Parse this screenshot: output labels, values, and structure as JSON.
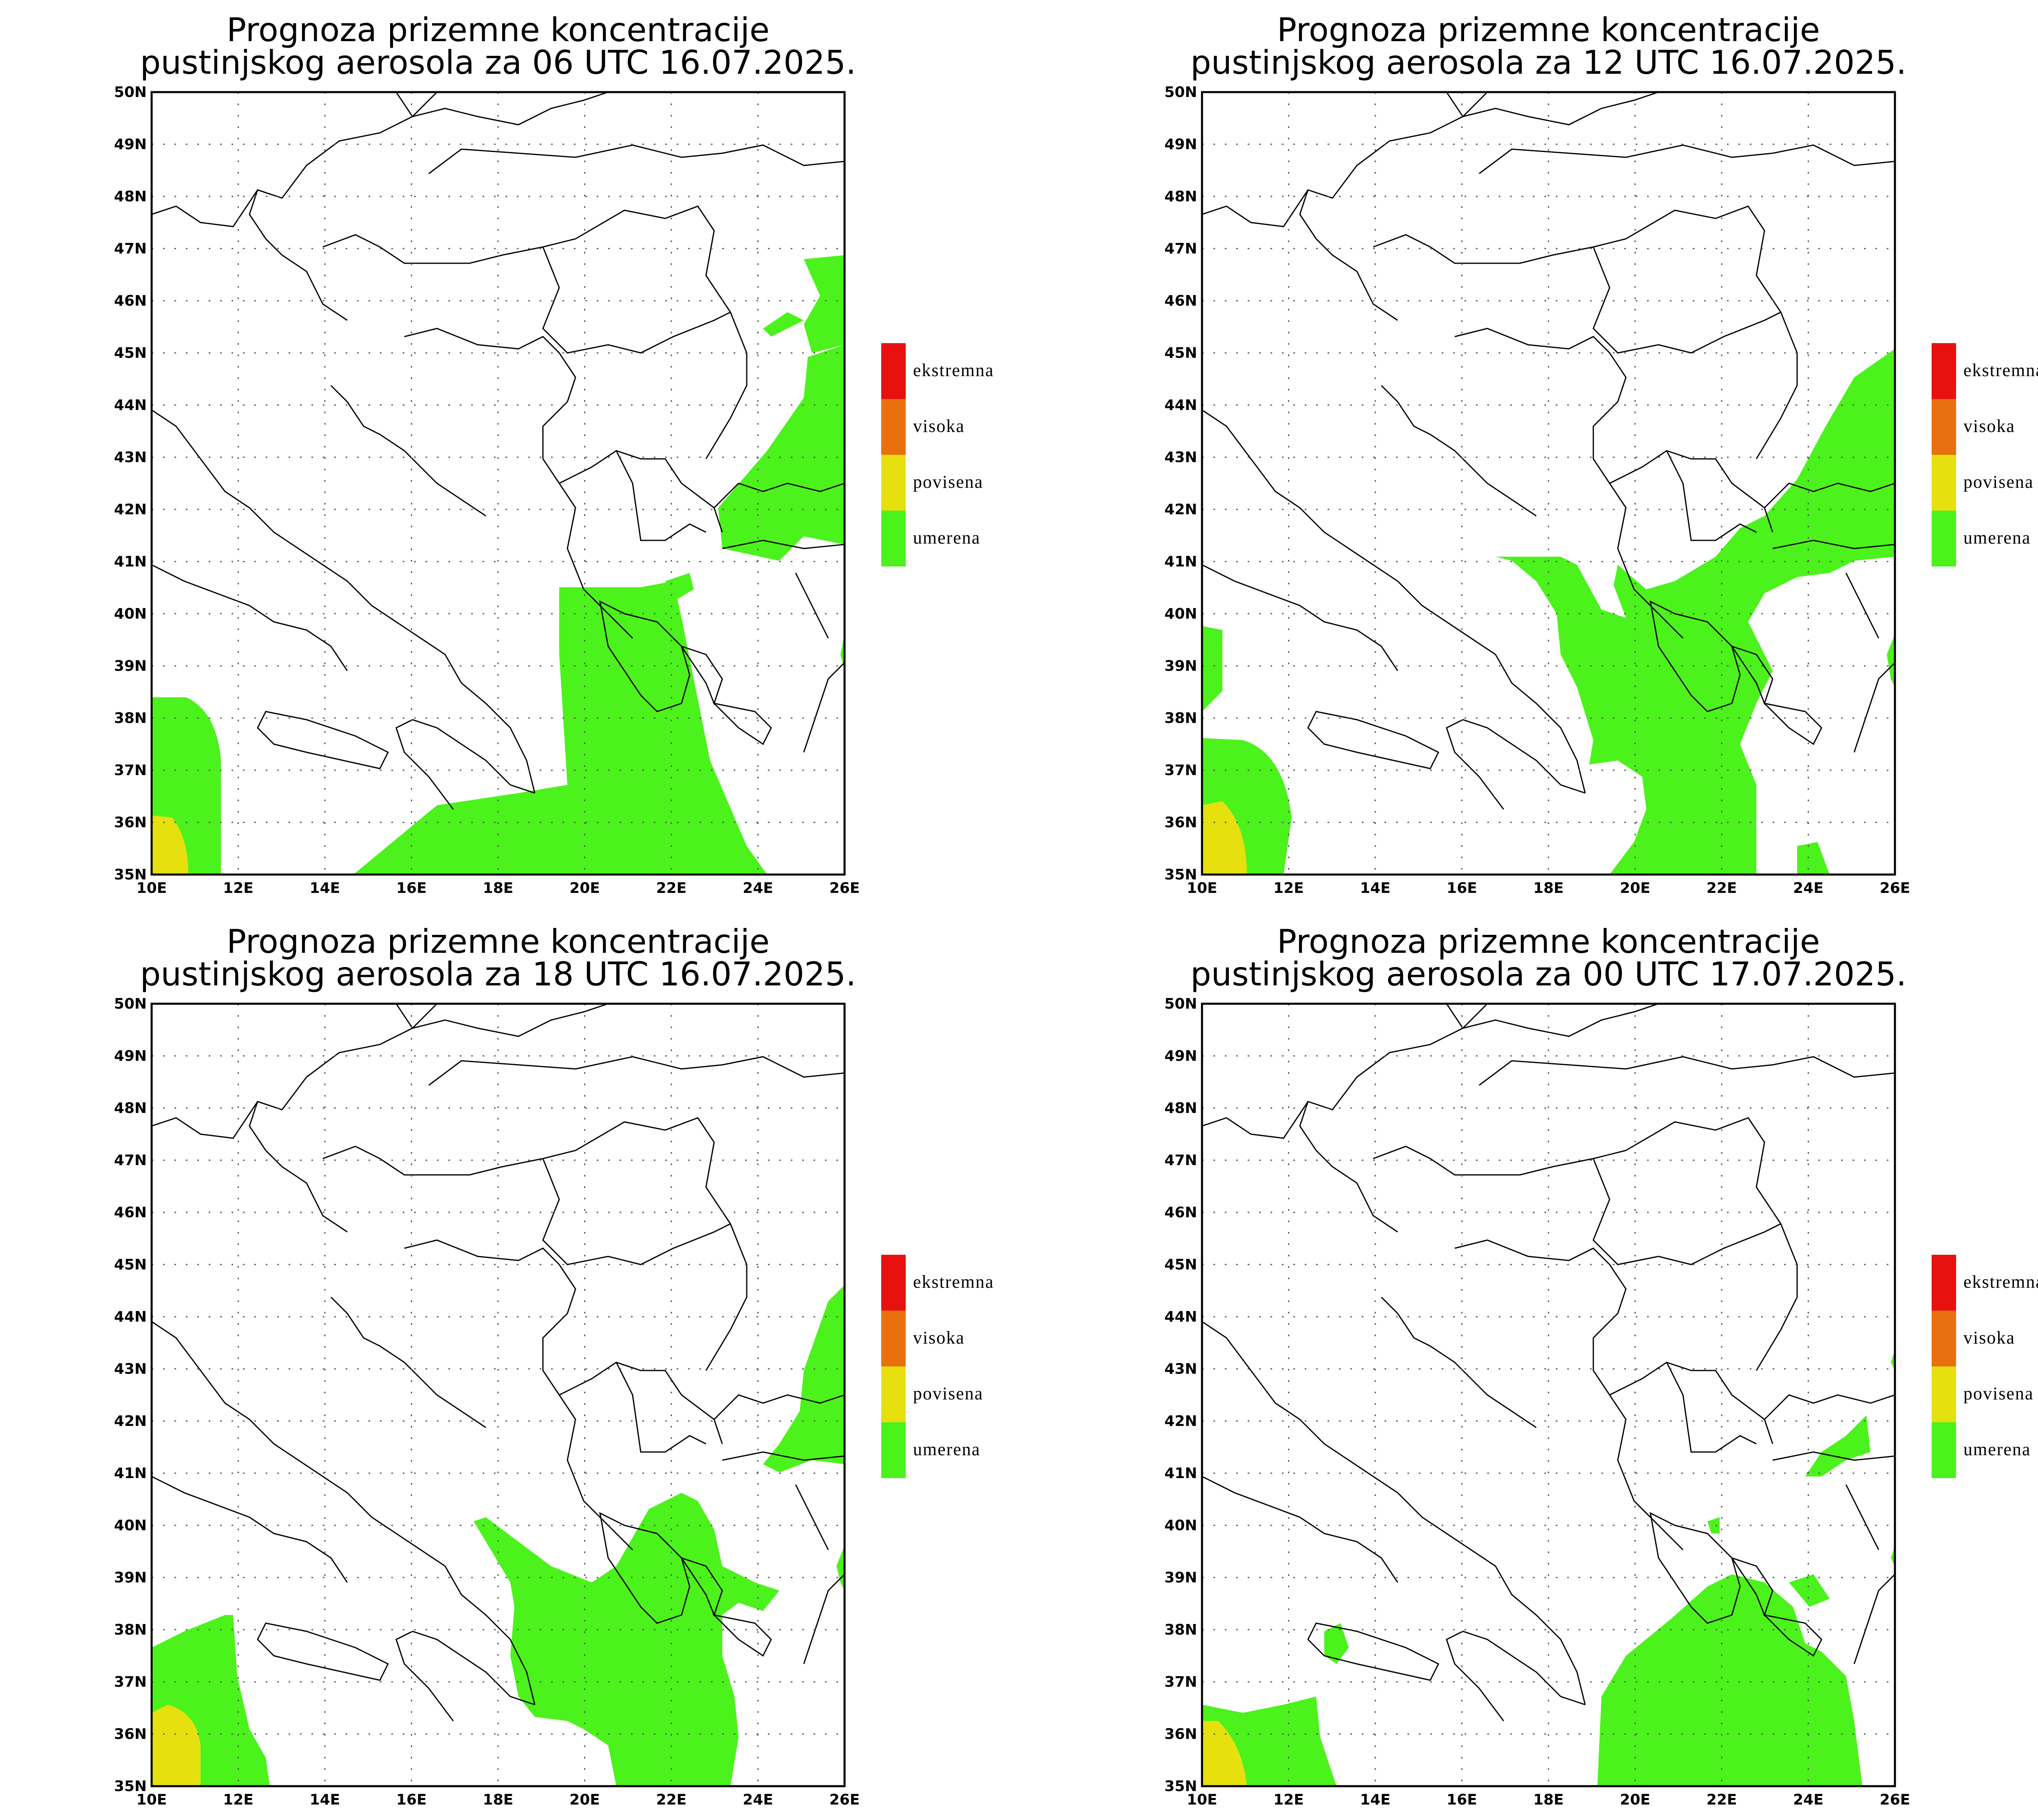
{
  "title_line1": "Prognoza prizemne koncentracije",
  "panels": [
    {
      "title_line2": "pustinjskog aerosola za 06 UTC 16.07.2025."
    },
    {
      "title_line2": "pustinjskog aerosola za 12 UTC 16.07.2025."
    },
    {
      "title_line2": "pustinjskog aerosola za 18 UTC 16.07.2025."
    },
    {
      "title_line2": "pustinjskog aerosola za 00 UTC 17.07.2025."
    }
  ],
  "lat_labels": [
    "35N",
    "36N",
    "37N",
    "38N",
    "39N",
    "40N",
    "41N",
    "42N",
    "43N",
    "44N",
    "45N",
    "46N",
    "47N",
    "48N",
    "49N",
    "50N"
  ],
  "lon_labels": [
    "10E",
    "12E",
    "14E",
    "16E",
    "18E",
    "20E",
    "22E",
    "24E",
    "26E"
  ],
  "legend": [
    {
      "label": "ekstremna",
      "color": "#e8110f"
    },
    {
      "label": "visoka",
      "color": "#e8700f"
    },
    {
      "label": "povisena",
      "color": "#e6e00f"
    },
    {
      "label": "umerena",
      "color": "#4cf21b"
    }
  ],
  "colors": {
    "moderate": "#4cf21b",
    "elevated": "#e6e00f",
    "border": "#000000",
    "grid": "#555555"
  }
}
